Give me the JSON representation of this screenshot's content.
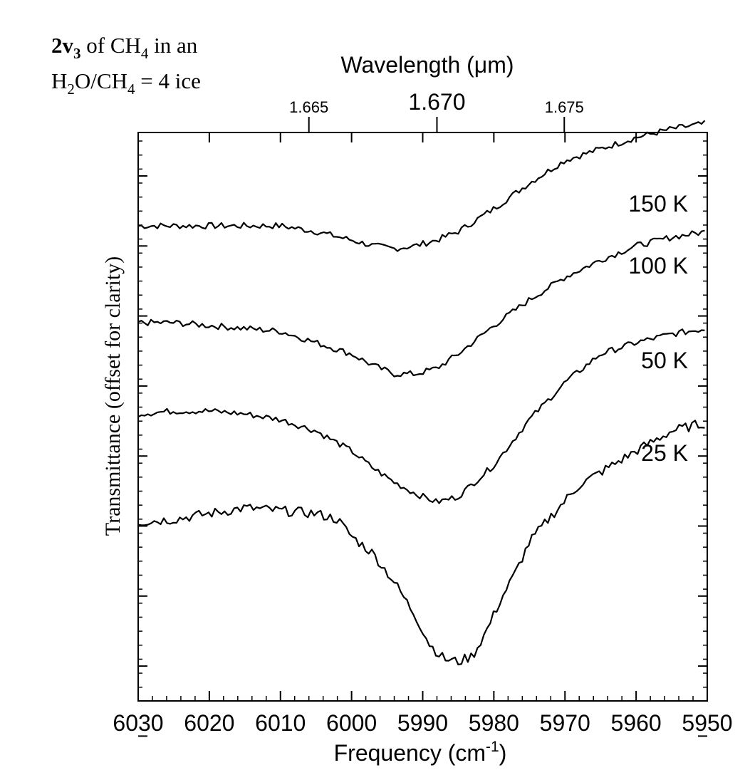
{
  "figure": {
    "title_line1": {
      "bold": "2v",
      "bold_sub": "3",
      "text": " of CH",
      "sub": "4",
      "tail": " in an"
    },
    "title_line2": {
      "a": "H",
      "a_sub": "2",
      "b": "O/CH",
      "b_sub": "4",
      "c": " = 4 ice"
    }
  },
  "chart_data": {
    "type": "line",
    "xlabel": "Frequency (cm",
    "xlabel_sup": "-1",
    "xlabel_close": ")",
    "ylabel": "Transmittance (offset for clarity)",
    "top_axis_label": "Wavelength (μm)",
    "x_range": [
      6030,
      5950
    ],
    "x_reversed": true,
    "x_ticks": [
      "6030",
      "6020",
      "6010",
      "6000",
      "5990",
      "5980",
      "5970",
      "5960",
      "5950"
    ],
    "top_ticks": [
      {
        "label": "1.665",
        "value": 6006.0
      },
      {
        "label": "1.670",
        "value": 5988.0
      },
      {
        "label": "1.675",
        "value": 5970.1
      }
    ],
    "y_tick_count": 9,
    "series": [
      {
        "name": "150 K",
        "points": [
          [
            6030,
            0.02
          ],
          [
            6025,
            0.02
          ],
          [
            6020,
            0.02
          ],
          [
            6015,
            0.02
          ],
          [
            6010,
            0.02
          ],
          [
            6005,
            0.0
          ],
          [
            6000,
            -0.03
          ],
          [
            5997,
            -0.05
          ],
          [
            5994,
            -0.06
          ],
          [
            5991,
            -0.05
          ],
          [
            5988,
            -0.03
          ],
          [
            5985,
            0.0
          ],
          [
            5980,
            0.08
          ],
          [
            5975,
            0.17
          ],
          [
            5970,
            0.25
          ],
          [
            5965,
            0.29
          ],
          [
            5960,
            0.33
          ],
          [
            5955,
            0.36
          ],
          [
            5950,
            0.38
          ]
        ]
      },
      {
        "name": "100 K",
        "points": [
          [
            6030,
            -0.04
          ],
          [
            6025,
            -0.04
          ],
          [
            6020,
            -0.05
          ],
          [
            6015,
            -0.06
          ],
          [
            6010,
            -0.07
          ],
          [
            6005,
            -0.11
          ],
          [
            6000,
            -0.15
          ],
          [
            5997,
            -0.19
          ],
          [
            5994,
            -0.22
          ],
          [
            5991,
            -0.22
          ],
          [
            5988,
            -0.2
          ],
          [
            5985,
            -0.15
          ],
          [
            5980,
            -0.05
          ],
          [
            5975,
            0.04
          ],
          [
            5970,
            0.12
          ],
          [
            5965,
            0.18
          ],
          [
            5960,
            0.23
          ],
          [
            5955,
            0.26
          ],
          [
            5950,
            0.28
          ]
        ]
      },
      {
        "name": "50 K",
        "points": [
          [
            6030,
            -0.04
          ],
          [
            6025,
            -0.03
          ],
          [
            6020,
            -0.03
          ],
          [
            6015,
            -0.04
          ],
          [
            6010,
            -0.06
          ],
          [
            6005,
            -0.1
          ],
          [
            6000,
            -0.17
          ],
          [
            5997,
            -0.23
          ],
          [
            5994,
            -0.28
          ],
          [
            5991,
            -0.32
          ],
          [
            5988,
            -0.35
          ],
          [
            5985,
            -0.33
          ],
          [
            5980,
            -0.22
          ],
          [
            5975,
            -0.06
          ],
          [
            5970,
            0.07
          ],
          [
            5965,
            0.17
          ],
          [
            5960,
            0.21
          ],
          [
            5955,
            0.24
          ],
          [
            5950,
            0.26
          ]
        ]
      },
      {
        "name": "25 K",
        "points": [
          [
            6030,
            -0.05
          ],
          [
            6025,
            -0.04
          ],
          [
            6020,
            -0.02
          ],
          [
            6015,
            0.0
          ],
          [
            6010,
            -0.01
          ],
          [
            6005,
            -0.02
          ],
          [
            6002,
            -0.04
          ],
          [
            6000,
            -0.1
          ],
          [
            5997,
            -0.16
          ],
          [
            5994,
            -0.26
          ],
          [
            5991,
            -0.38
          ],
          [
            5989,
            -0.48
          ],
          [
            5987,
            -0.53
          ],
          [
            5985,
            -0.54
          ],
          [
            5983,
            -0.52
          ],
          [
            5981,
            -0.43
          ],
          [
            5979,
            -0.32
          ],
          [
            5977,
            -0.23
          ],
          [
            5975,
            -0.12
          ],
          [
            5972,
            -0.03
          ],
          [
            5968,
            0.08
          ],
          [
            5964,
            0.14
          ],
          [
            5960,
            0.2
          ],
          [
            5955,
            0.27
          ],
          [
            5950,
            0.3
          ]
        ]
      }
    ]
  }
}
